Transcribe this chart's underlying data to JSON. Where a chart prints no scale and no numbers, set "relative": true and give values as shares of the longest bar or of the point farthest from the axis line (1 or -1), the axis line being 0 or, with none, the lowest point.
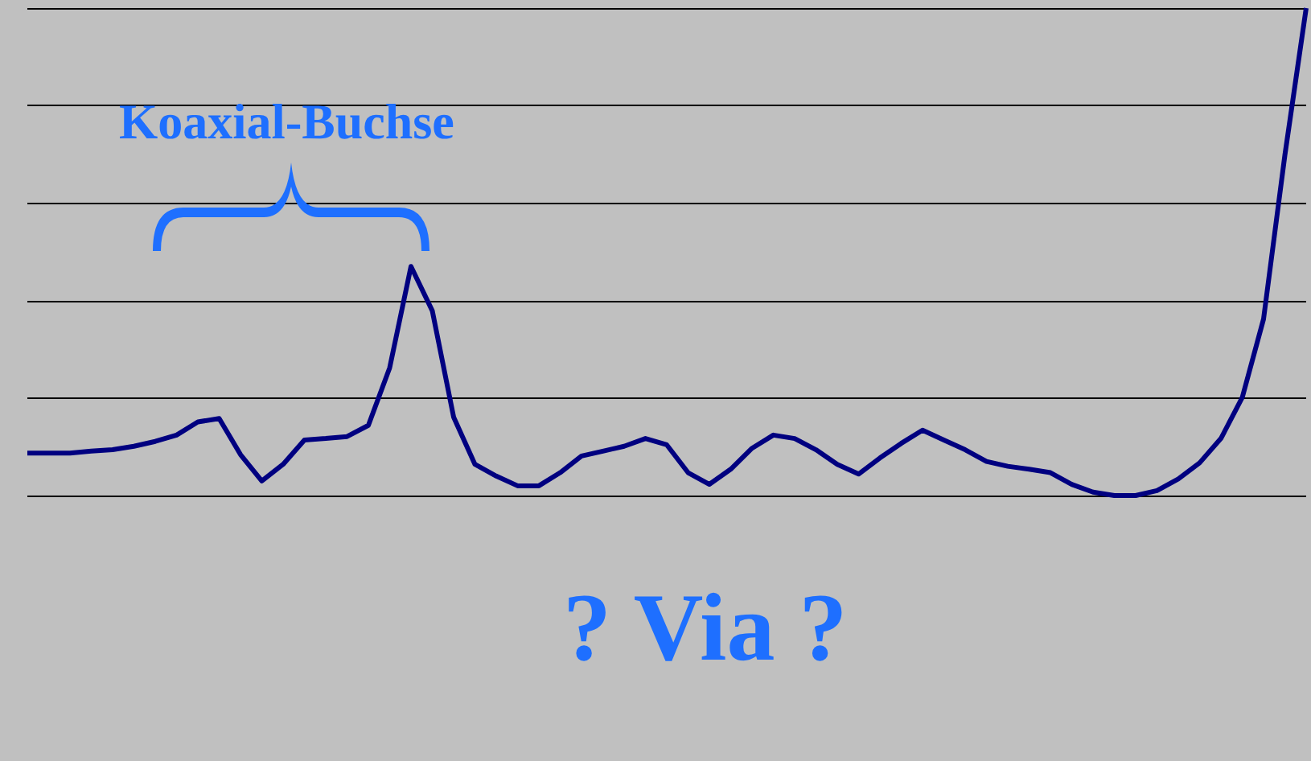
{
  "chart_data": {
    "type": "line",
    "relative": true,
    "grid": "y",
    "marker": "none",
    "line_style": "solid",
    "categories": [
      null,
      null,
      null,
      null,
      null,
      null,
      null,
      null,
      null,
      null,
      null,
      null,
      null,
      null,
      null,
      null,
      null,
      null,
      null,
      null,
      null,
      null,
      null,
      null,
      null,
      null,
      null,
      null,
      null,
      null,
      null,
      null,
      null,
      null,
      null,
      null,
      null,
      null,
      null,
      null,
      null,
      null,
      null,
      null,
      null,
      null,
      null,
      null,
      null,
      null,
      null,
      null,
      null,
      null,
      null,
      null,
      null,
      null,
      null,
      null,
      null
    ],
    "series": [
      {
        "color": "#000080",
        "values": [
          0.087,
          0.087,
          0.087,
          0.091,
          0.094,
          0.101,
          0.111,
          0.124,
          0.151,
          0.158,
          0.084,
          0.03,
          0.064,
          0.114,
          0.117,
          0.121,
          0.144,
          0.262,
          0.47,
          0.379,
          0.161,
          0.064,
          0.04,
          0.02,
          0.02,
          0.047,
          0.081,
          0.091,
          0.101,
          0.117,
          0.104,
          0.047,
          0.023,
          0.054,
          0.097,
          0.124,
          0.117,
          0.094,
          0.064,
          0.044,
          0.077,
          0.107,
          0.134,
          0.114,
          0.094,
          0.07,
          0.06,
          0.054,
          0.047,
          0.023,
          0.007,
          0,
          0,
          0.01,
          0.034,
          0.067,
          0.117,
          0.201,
          0.362,
          0.698,
          1
        ]
      }
    ],
    "annotations": [
      "Koaxial-Buchse",
      "? Via ?"
    ]
  }
}
